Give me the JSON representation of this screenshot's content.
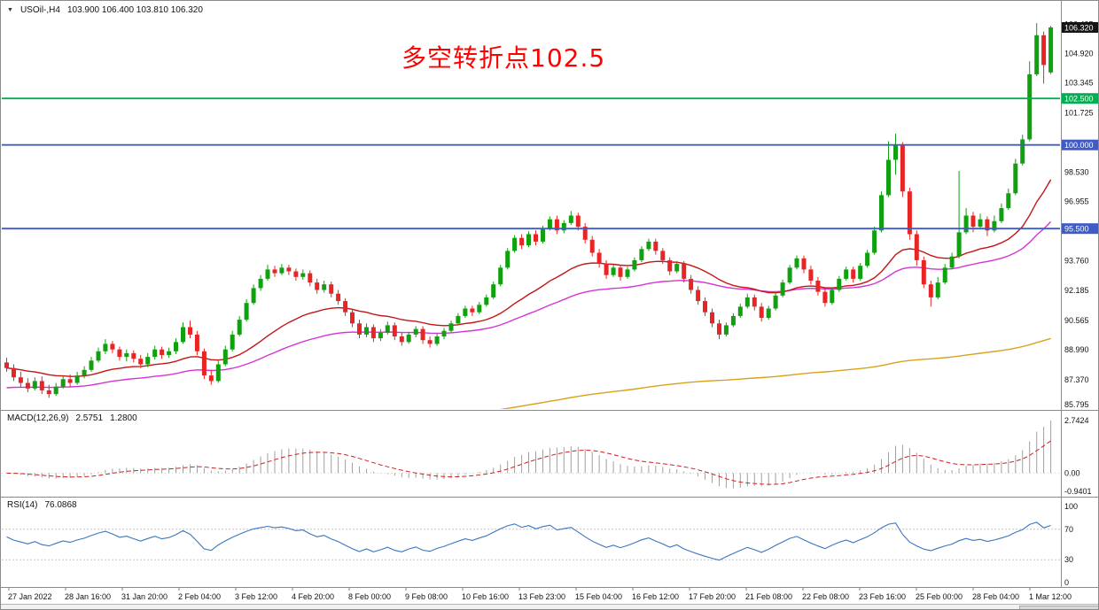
{
  "window": {
    "header": {
      "dropdown_marker": "▼",
      "symbol": "USOil-,H4",
      "ohlc_text": "103.900 106.400 103.810 106.320"
    }
  },
  "chart_data": {
    "type": "candlestick",
    "symbol": "USOil-",
    "timeframe": "H4",
    "last_quote": {
      "open": 103.9,
      "high": 106.4,
      "low": 103.81,
      "close": 106.32
    },
    "annotation": {
      "text": "多空转折点102.5",
      "color": "#ff0000"
    },
    "price_axis": {
      "plain_labels": [
        "106.495",
        "104.920",
        "103.345",
        "101.725",
        "98.530",
        "96.955",
        "93.760",
        "92.185",
        "90.565",
        "88.990",
        "87.370",
        "85.795"
      ],
      "current_tag": {
        "value": 106.32,
        "label": "106.320",
        "bg": "#141414"
      }
    },
    "hlines": [
      {
        "price": 102.5,
        "label": "102.500",
        "color": "#00b050"
      },
      {
        "price": 100.0,
        "label": "100.000",
        "color": "#3f5cc4"
      },
      {
        "price": 95.5,
        "label": "95.500",
        "color": "#3f5cc4"
      }
    ],
    "time_labels": [
      "27 Jan 2022",
      "28 Jan 16:00",
      "31 Jan 20:00",
      "2 Feb 04:00",
      "3 Feb 12:00",
      "4 Feb 20:00",
      "8 Feb 00:00",
      "9 Feb 08:00",
      "10 Feb 16:00",
      "13 Feb 23:00",
      "15 Feb 04:00",
      "16 Feb 12:00",
      "17 Feb 20:00",
      "21 Feb 08:00",
      "22 Feb 08:00",
      "23 Feb 16:00",
      "25 Feb 00:00",
      "28 Feb 04:00",
      "1 Mar 12:00"
    ],
    "moving_averages": [
      {
        "name": "ma-slow-orange",
        "color": "#d9a21b",
        "alpha": 0.007,
        "seed": 83.0
      },
      {
        "name": "ma-mid-magenta",
        "color": "#d633d6",
        "period": 55,
        "seed": 86.9
      },
      {
        "name": "ma-fast-red",
        "color": "#c41414",
        "period": 26
      }
    ],
    "indicators": {
      "macd": {
        "title": "MACD(12,26,9)",
        "main_value": "2.5751",
        "signal_value": "1.2800",
        "fast": 12,
        "slow": 26,
        "signal": 9,
        "hist_color": "#a0a0a0",
        "signal_color": "#cc2020",
        "axis_labels": [
          {
            "text": "2.7424",
            "value": 2.7424
          },
          {
            "text": "0.00",
            "value": 0
          },
          {
            "text": "-0.9401",
            "value": -0.9401
          }
        ]
      },
      "rsi": {
        "title": "RSI(14)",
        "value": "76.0868",
        "period": 14,
        "line_color": "#3a76c0",
        "levels": [
          {
            "text": "100",
            "value": 100,
            "dashed": false
          },
          {
            "text": "70",
            "value": 70,
            "dashed": true
          },
          {
            "text": "30",
            "value": 30,
            "dashed": true
          },
          {
            "text": "0",
            "value": 0,
            "dashed": false
          }
        ]
      }
    },
    "colors": {
      "up": "#10a010",
      "down": "#e82525",
      "background": "#ffffff",
      "border": "#8a8a8a"
    },
    "candles": [
      [
        88.3,
        88.55,
        87.8,
        88.0
      ],
      [
        88.0,
        88.2,
        87.3,
        87.5
      ],
      [
        87.5,
        87.8,
        86.95,
        87.2
      ],
      [
        87.2,
        87.45,
        86.7,
        86.9
      ],
      [
        86.9,
        87.5,
        86.8,
        87.3
      ],
      [
        87.3,
        87.55,
        86.6,
        86.8
      ],
      [
        86.8,
        87.1,
        86.4,
        86.6
      ],
      [
        86.6,
        87.2,
        86.5,
        87.0
      ],
      [
        87.0,
        87.6,
        86.9,
        87.4
      ],
      [
        87.4,
        87.65,
        87.0,
        87.2
      ],
      [
        87.2,
        87.8,
        87.1,
        87.6
      ],
      [
        87.6,
        88.1,
        87.45,
        87.9
      ],
      [
        87.9,
        88.6,
        87.8,
        88.4
      ],
      [
        88.4,
        89.1,
        88.3,
        88.9
      ],
      [
        88.9,
        89.55,
        88.75,
        89.3
      ],
      [
        89.3,
        89.45,
        88.8,
        89.0
      ],
      [
        89.0,
        89.15,
        88.4,
        88.6
      ],
      [
        88.6,
        89.0,
        88.35,
        88.8
      ],
      [
        88.8,
        88.95,
        88.3,
        88.5
      ],
      [
        88.5,
        88.7,
        88.0,
        88.2
      ],
      [
        88.2,
        88.8,
        88.05,
        88.6
      ],
      [
        88.6,
        89.2,
        88.45,
        89.0
      ],
      [
        89.0,
        89.15,
        88.5,
        88.7
      ],
      [
        88.7,
        89.1,
        88.55,
        88.9
      ],
      [
        88.9,
        89.6,
        88.75,
        89.4
      ],
      [
        89.4,
        90.45,
        89.3,
        90.2
      ],
      [
        90.2,
        90.55,
        89.6,
        89.8
      ],
      [
        89.8,
        90.0,
        88.7,
        88.9
      ],
      [
        88.9,
        89.05,
        87.4,
        87.6
      ],
      [
        87.6,
        87.9,
        87.1,
        87.3
      ],
      [
        87.3,
        88.4,
        87.2,
        88.2
      ],
      [
        88.2,
        89.2,
        88.1,
        89.0
      ],
      [
        89.0,
        90.0,
        88.9,
        89.8
      ],
      [
        89.8,
        90.8,
        89.7,
        90.6
      ],
      [
        90.6,
        91.7,
        90.5,
        91.5
      ],
      [
        91.5,
        92.5,
        91.4,
        92.3
      ],
      [
        92.3,
        93.0,
        92.15,
        92.8
      ],
      [
        92.8,
        93.55,
        92.7,
        93.3
      ],
      [
        93.3,
        93.5,
        92.9,
        93.1
      ],
      [
        93.1,
        93.6,
        93.0,
        93.4
      ],
      [
        93.4,
        93.55,
        93.0,
        93.2
      ],
      [
        93.2,
        93.35,
        92.7,
        92.9
      ],
      [
        92.9,
        93.3,
        92.75,
        93.1
      ],
      [
        93.1,
        93.25,
        92.4,
        92.6
      ],
      [
        92.6,
        92.8,
        92.0,
        92.2
      ],
      [
        92.2,
        92.7,
        92.05,
        92.5
      ],
      [
        92.5,
        92.65,
        91.8,
        92.0
      ],
      [
        92.0,
        92.2,
        91.4,
        91.6
      ],
      [
        91.6,
        91.75,
        90.8,
        91.0
      ],
      [
        91.0,
        91.2,
        90.2,
        90.4
      ],
      [
        90.4,
        90.6,
        89.6,
        89.8
      ],
      [
        89.8,
        90.4,
        89.65,
        90.2
      ],
      [
        90.2,
        90.35,
        89.4,
        89.6
      ],
      [
        89.6,
        90.1,
        89.45,
        89.9
      ],
      [
        89.9,
        90.5,
        89.8,
        90.3
      ],
      [
        90.3,
        90.45,
        89.5,
        89.7
      ],
      [
        89.7,
        89.9,
        89.2,
        89.4
      ],
      [
        89.4,
        89.95,
        89.3,
        89.8
      ],
      [
        89.8,
        90.25,
        89.65,
        90.1
      ],
      [
        90.1,
        90.25,
        89.3,
        89.5
      ],
      [
        89.5,
        89.7,
        89.1,
        89.3
      ],
      [
        89.3,
        89.85,
        89.2,
        89.7
      ],
      [
        89.7,
        90.15,
        89.55,
        90.0
      ],
      [
        90.0,
        90.55,
        89.9,
        90.4
      ],
      [
        90.4,
        90.95,
        90.3,
        90.8
      ],
      [
        90.8,
        91.35,
        90.7,
        91.2
      ],
      [
        91.2,
        91.35,
        90.8,
        91.0
      ],
      [
        91.0,
        91.55,
        90.9,
        91.4
      ],
      [
        91.4,
        91.95,
        91.3,
        91.8
      ],
      [
        91.8,
        92.65,
        91.7,
        92.5
      ],
      [
        92.5,
        93.55,
        92.4,
        93.4
      ],
      [
        93.4,
        94.45,
        93.3,
        94.3
      ],
      [
        94.3,
        95.15,
        94.2,
        95.0
      ],
      [
        95.0,
        95.2,
        94.4,
        94.6
      ],
      [
        94.6,
        95.35,
        94.5,
        95.2
      ],
      [
        95.2,
        95.4,
        94.6,
        94.8
      ],
      [
        94.8,
        95.65,
        94.7,
        95.5
      ],
      [
        95.5,
        96.15,
        95.4,
        96.0
      ],
      [
        96.0,
        96.2,
        95.2,
        95.4
      ],
      [
        95.4,
        95.95,
        95.25,
        95.8
      ],
      [
        95.8,
        96.45,
        95.7,
        96.2
      ],
      [
        96.2,
        96.35,
        95.4,
        95.6
      ],
      [
        95.6,
        95.8,
        94.7,
        94.9
      ],
      [
        94.9,
        95.1,
        94.0,
        94.2
      ],
      [
        94.2,
        94.4,
        93.4,
        93.6
      ],
      [
        93.6,
        93.8,
        92.8,
        93.0
      ],
      [
        93.0,
        93.55,
        92.9,
        93.4
      ],
      [
        93.4,
        93.55,
        92.7,
        92.9
      ],
      [
        92.9,
        93.45,
        92.8,
        93.3
      ],
      [
        93.3,
        93.95,
        93.2,
        93.8
      ],
      [
        93.8,
        94.55,
        93.7,
        94.4
      ],
      [
        94.4,
        94.95,
        94.3,
        94.8
      ],
      [
        94.8,
        94.95,
        94.1,
        94.3
      ],
      [
        94.3,
        94.45,
        93.6,
        93.8
      ],
      [
        93.8,
        93.95,
        93.0,
        93.2
      ],
      [
        93.2,
        93.75,
        93.1,
        93.6
      ],
      [
        93.6,
        93.75,
        92.6,
        92.8
      ],
      [
        92.8,
        93.0,
        92.0,
        92.2
      ],
      [
        92.2,
        92.4,
        91.4,
        91.6
      ],
      [
        91.6,
        91.8,
        90.8,
        91.0
      ],
      [
        91.0,
        91.2,
        90.2,
        90.4
      ],
      [
        90.4,
        90.6,
        89.55,
        89.8
      ],
      [
        89.8,
        90.45,
        89.7,
        90.3
      ],
      [
        90.3,
        90.95,
        90.2,
        90.8
      ],
      [
        90.8,
        91.45,
        90.7,
        91.3
      ],
      [
        91.3,
        92.0,
        91.2,
        91.8
      ],
      [
        91.8,
        91.95,
        91.1,
        91.3
      ],
      [
        91.3,
        91.5,
        90.5,
        90.7
      ],
      [
        90.7,
        91.35,
        90.6,
        91.2
      ],
      [
        91.2,
        92.05,
        91.1,
        91.9
      ],
      [
        91.9,
        92.75,
        91.8,
        92.6
      ],
      [
        92.6,
        93.55,
        92.5,
        93.4
      ],
      [
        93.4,
        94.05,
        93.3,
        93.9
      ],
      [
        93.9,
        94.05,
        93.1,
        93.3
      ],
      [
        93.3,
        93.5,
        92.5,
        92.7
      ],
      [
        92.7,
        92.9,
        91.9,
        92.1
      ],
      [
        92.1,
        92.3,
        91.3,
        91.5
      ],
      [
        91.5,
        92.35,
        91.4,
        92.2
      ],
      [
        92.2,
        92.95,
        92.1,
        92.8
      ],
      [
        92.8,
        93.45,
        92.7,
        93.3
      ],
      [
        93.3,
        93.45,
        92.6,
        92.8
      ],
      [
        92.8,
        93.65,
        92.7,
        93.5
      ],
      [
        93.5,
        94.35,
        93.4,
        94.2
      ],
      [
        94.2,
        95.6,
        94.1,
        95.4
      ],
      [
        95.4,
        97.5,
        95.3,
        97.3
      ],
      [
        97.3,
        100.2,
        97.2,
        99.2
      ],
      [
        99.2,
        100.6,
        98.4,
        100.0
      ],
      [
        100.0,
        100.15,
        97.2,
        97.5
      ],
      [
        97.5,
        97.7,
        94.9,
        95.2
      ],
      [
        95.2,
        95.4,
        93.5,
        93.8
      ],
      [
        93.8,
        94.0,
        92.3,
        92.5
      ],
      [
        92.5,
        92.7,
        91.3,
        91.8
      ],
      [
        91.8,
        92.9,
        91.7,
        92.6
      ],
      [
        92.6,
        93.6,
        92.5,
        93.4
      ],
      [
        93.4,
        94.2,
        93.3,
        94.0
      ],
      [
        94.0,
        98.6,
        93.9,
        95.3
      ],
      [
        95.3,
        96.6,
        95.2,
        96.2
      ],
      [
        96.2,
        96.4,
        95.3,
        95.6
      ],
      [
        95.6,
        96.3,
        95.5,
        96.0
      ],
      [
        96.0,
        96.15,
        95.1,
        95.4
      ],
      [
        95.4,
        96.2,
        95.3,
        95.9
      ],
      [
        95.9,
        96.85,
        95.8,
        96.6
      ],
      [
        96.6,
        97.65,
        96.5,
        97.4
      ],
      [
        97.4,
        99.25,
        97.3,
        99.0
      ],
      [
        99.0,
        100.55,
        98.9,
        100.3
      ],
      [
        100.3,
        104.5,
        100.2,
        103.8
      ],
      [
        103.8,
        106.55,
        103.7,
        105.9
      ],
      [
        105.9,
        106.1,
        103.3,
        104.3
      ],
      [
        103.9,
        106.4,
        103.81,
        106.32
      ]
    ]
  }
}
